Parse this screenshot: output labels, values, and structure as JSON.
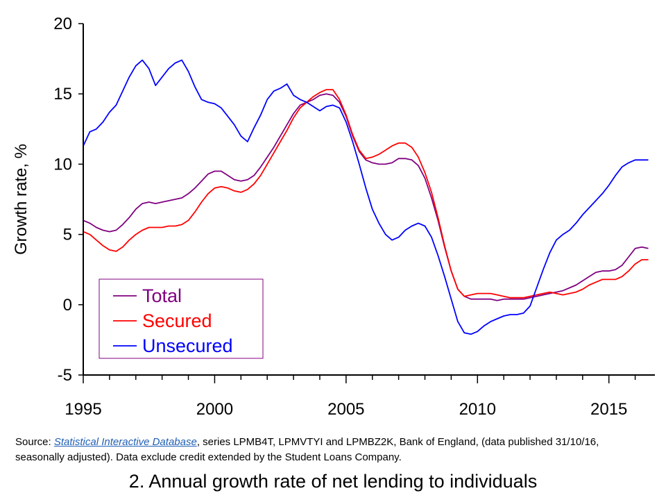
{
  "chart_data": {
    "type": "line",
    "title": "",
    "xlabel": "",
    "ylabel": "Growth rate, %",
    "xlim": [
      1995,
      2016.75
    ],
    "ylim": [
      -5,
      20
    ],
    "x_ticks": [
      1995,
      2000,
      2005,
      2010,
      2015
    ],
    "y_ticks": [
      -5,
      0,
      5,
      10,
      15,
      20
    ],
    "grid": false,
    "legend_position": "bottom-left",
    "series": [
      {
        "name": "Total",
        "color": "#800080",
        "x": [
          1995.0,
          1995.25,
          1995.5,
          1995.75,
          1996.0,
          1996.25,
          1996.5,
          1996.75,
          1997.0,
          1997.25,
          1997.5,
          1997.75,
          1998.0,
          1998.25,
          1998.5,
          1998.75,
          1999.0,
          1999.25,
          1999.5,
          1999.75,
          2000.0,
          2000.25,
          2000.5,
          2000.75,
          2001.0,
          2001.25,
          2001.5,
          2001.75,
          2002.0,
          2002.25,
          2002.5,
          2002.75,
          2003.0,
          2003.25,
          2003.5,
          2003.75,
          2004.0,
          2004.25,
          2004.5,
          2004.75,
          2005.0,
          2005.25,
          2005.5,
          2005.75,
          2006.0,
          2006.25,
          2006.5,
          2006.75,
          2007.0,
          2007.25,
          2007.5,
          2007.75,
          2008.0,
          2008.25,
          2008.5,
          2008.75,
          2009.0,
          2009.25,
          2009.5,
          2009.75,
          2010.0,
          2010.25,
          2010.5,
          2010.75,
          2011.0,
          2011.25,
          2011.5,
          2011.75,
          2012.0,
          2012.25,
          2012.5,
          2012.75,
          2013.0,
          2013.25,
          2013.5,
          2013.75,
          2014.0,
          2014.25,
          2014.5,
          2014.75,
          2015.0,
          2015.25,
          2015.5,
          2015.75,
          2016.0,
          2016.25,
          2016.5
        ],
        "values": [
          6.0,
          5.8,
          5.5,
          5.3,
          5.2,
          5.3,
          5.7,
          6.2,
          6.8,
          7.2,
          7.3,
          7.2,
          7.3,
          7.4,
          7.5,
          7.6,
          7.9,
          8.3,
          8.8,
          9.3,
          9.5,
          9.5,
          9.2,
          8.9,
          8.8,
          8.9,
          9.2,
          9.8,
          10.5,
          11.2,
          12.0,
          12.8,
          13.6,
          14.2,
          14.4,
          14.6,
          14.9,
          15.0,
          14.9,
          14.4,
          13.4,
          12.0,
          10.9,
          10.3,
          10.1,
          10.0,
          10.0,
          10.1,
          10.4,
          10.4,
          10.3,
          9.9,
          9.0,
          7.6,
          6.0,
          4.1,
          2.4,
          1.1,
          0.6,
          0.4,
          0.4,
          0.4,
          0.4,
          0.3,
          0.4,
          0.4,
          0.4,
          0.4,
          0.5,
          0.6,
          0.7,
          0.8,
          0.9,
          1.0,
          1.2,
          1.4,
          1.7,
          2.0,
          2.3,
          2.4,
          2.4,
          2.5,
          2.8,
          3.4,
          4.0,
          4.1,
          4.0
        ]
      },
      {
        "name": "Secured",
        "color": "#ff0000",
        "x": [
          1995.0,
          1995.25,
          1995.5,
          1995.75,
          1996.0,
          1996.25,
          1996.5,
          1996.75,
          1997.0,
          1997.25,
          1997.5,
          1997.75,
          1998.0,
          1998.25,
          1998.5,
          1998.75,
          1999.0,
          1999.25,
          1999.5,
          1999.75,
          2000.0,
          2000.25,
          2000.5,
          2000.75,
          2001.0,
          2001.25,
          2001.5,
          2001.75,
          2002.0,
          2002.25,
          2002.5,
          2002.75,
          2003.0,
          2003.25,
          2003.5,
          2003.75,
          2004.0,
          2004.25,
          2004.5,
          2004.75,
          2005.0,
          2005.25,
          2005.5,
          2005.75,
          2006.0,
          2006.25,
          2006.5,
          2006.75,
          2007.0,
          2007.25,
          2007.5,
          2007.75,
          2008.0,
          2008.25,
          2008.5,
          2008.75,
          2009.0,
          2009.25,
          2009.5,
          2009.75,
          2010.0,
          2010.25,
          2010.5,
          2010.75,
          2011.0,
          2011.25,
          2011.5,
          2011.75,
          2012.0,
          2012.25,
          2012.5,
          2012.75,
          2013.0,
          2013.25,
          2013.5,
          2013.75,
          2014.0,
          2014.25,
          2014.5,
          2014.75,
          2015.0,
          2015.25,
          2015.5,
          2015.75,
          2016.0,
          2016.25,
          2016.5
        ],
        "values": [
          5.2,
          5.0,
          4.6,
          4.2,
          3.9,
          3.8,
          4.1,
          4.6,
          5.0,
          5.3,
          5.5,
          5.5,
          5.5,
          5.6,
          5.6,
          5.7,
          6.0,
          6.6,
          7.3,
          7.9,
          8.3,
          8.4,
          8.3,
          8.1,
          8.0,
          8.2,
          8.6,
          9.2,
          10.0,
          10.8,
          11.6,
          12.4,
          13.3,
          14.0,
          14.4,
          14.8,
          15.1,
          15.3,
          15.3,
          14.6,
          13.5,
          12.1,
          11.0,
          10.4,
          10.5,
          10.7,
          11.0,
          11.3,
          11.5,
          11.5,
          11.2,
          10.5,
          9.4,
          8.0,
          6.2,
          4.2,
          2.4,
          1.1,
          0.6,
          0.7,
          0.8,
          0.8,
          0.8,
          0.7,
          0.6,
          0.5,
          0.5,
          0.5,
          0.6,
          0.7,
          0.8,
          0.9,
          0.8,
          0.7,
          0.8,
          0.9,
          1.1,
          1.4,
          1.6,
          1.8,
          1.8,
          1.8,
          2.0,
          2.4,
          2.9,
          3.2,
          3.2
        ]
      },
      {
        "name": "Unsecured",
        "color": "#0000ff",
        "x": [
          1995.0,
          1995.25,
          1995.5,
          1995.75,
          1996.0,
          1996.25,
          1996.5,
          1996.75,
          1997.0,
          1997.25,
          1997.5,
          1997.75,
          1998.0,
          1998.25,
          1998.5,
          1998.75,
          1999.0,
          1999.25,
          1999.5,
          1999.75,
          2000.0,
          2000.25,
          2000.5,
          2000.75,
          2001.0,
          2001.25,
          2001.5,
          2001.75,
          2002.0,
          2002.25,
          2002.5,
          2002.75,
          2003.0,
          2003.25,
          2003.5,
          2003.75,
          2004.0,
          2004.25,
          2004.5,
          2004.75,
          2005.0,
          2005.25,
          2005.5,
          2005.75,
          2006.0,
          2006.25,
          2006.5,
          2006.75,
          2007.0,
          2007.25,
          2007.5,
          2007.75,
          2008.0,
          2008.25,
          2008.5,
          2008.75,
          2009.0,
          2009.25,
          2009.5,
          2009.75,
          2010.0,
          2010.25,
          2010.5,
          2010.75,
          2011.0,
          2011.25,
          2011.5,
          2011.75,
          2012.0,
          2012.25,
          2012.5,
          2012.75,
          2013.0,
          2013.25,
          2013.5,
          2013.75,
          2014.0,
          2014.25,
          2014.5,
          2014.75,
          2015.0,
          2015.25,
          2015.5,
          2015.75,
          2016.0,
          2016.25,
          2016.5
        ],
        "values": [
          11.3,
          12.3,
          12.5,
          13.0,
          13.7,
          14.2,
          15.2,
          16.2,
          17.0,
          17.4,
          16.8,
          15.6,
          16.2,
          16.8,
          17.2,
          17.4,
          16.6,
          15.5,
          14.6,
          14.4,
          14.3,
          14.0,
          13.4,
          12.8,
          12.0,
          11.6,
          12.6,
          13.5,
          14.6,
          15.2,
          15.4,
          15.7,
          14.9,
          14.6,
          14.4,
          14.1,
          13.8,
          14.1,
          14.2,
          14.0,
          13.0,
          11.6,
          10.0,
          8.3,
          6.8,
          5.8,
          5.0,
          4.6,
          4.8,
          5.3,
          5.6,
          5.8,
          5.6,
          4.8,
          3.5,
          2.0,
          0.4,
          -1.2,
          -2.0,
          -2.1,
          -1.9,
          -1.5,
          -1.2,
          -1.0,
          -0.8,
          -0.7,
          -0.7,
          -0.6,
          -0.1,
          1.2,
          2.5,
          3.7,
          4.6,
          5.0,
          5.3,
          5.8,
          6.4,
          6.9,
          7.4,
          7.9,
          8.5,
          9.2,
          9.8,
          10.1,
          10.3,
          10.3,
          10.3
        ]
      }
    ]
  },
  "source": {
    "prefix": "Source: ",
    "link_text": "Statistical Interactive Database",
    "rest": ", series LPMB4T, LPMVTYI and LPMBZ2K, Bank of England, (data published 31/10/16, seasonally adjusted). Data exclude credit extended by the Student Loans Company."
  },
  "caption": "2. Annual growth rate of net lending to individuals"
}
